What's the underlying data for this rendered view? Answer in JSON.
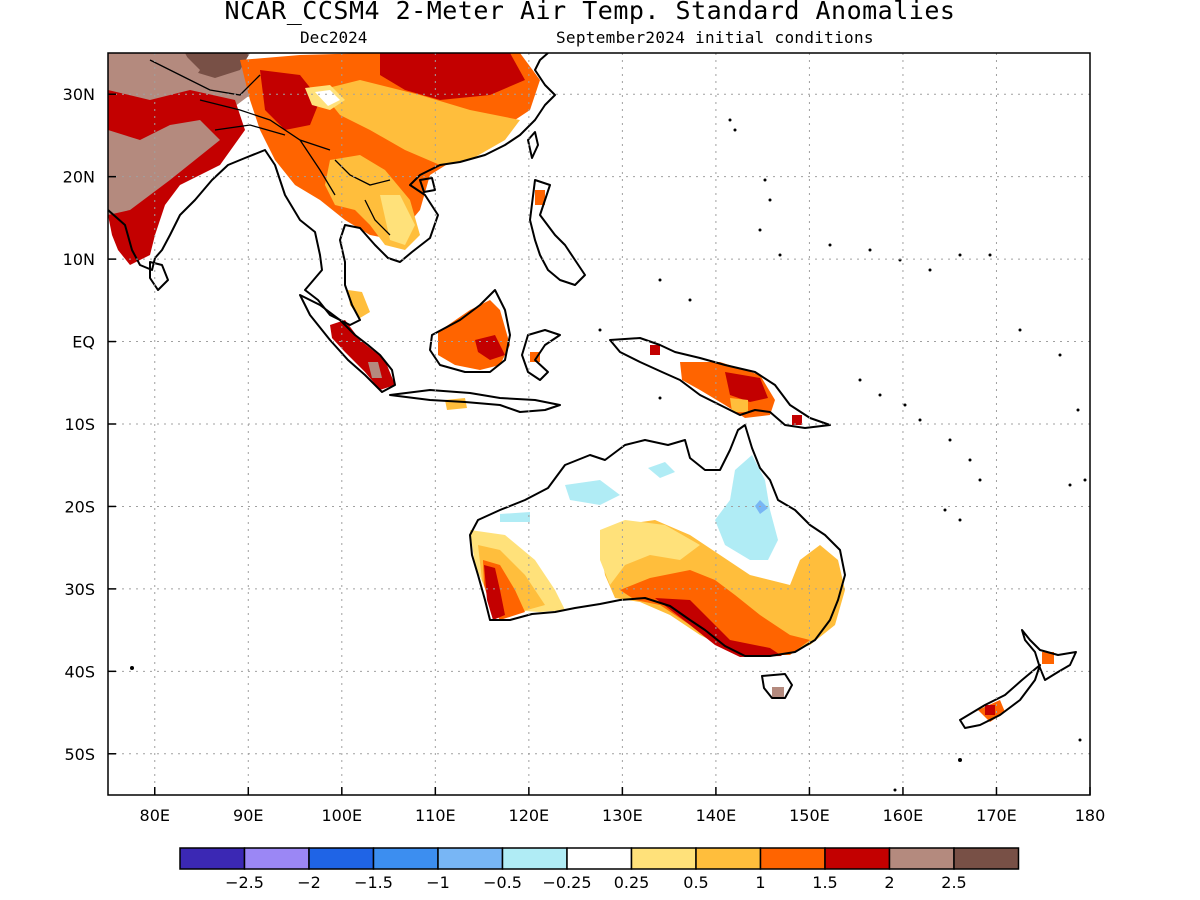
{
  "title": "NCAR_CCSM4 2-Meter Air Temp. Standard Anomalies",
  "subtitle_left": "Dec2024",
  "subtitle_right": "September2024 initial conditions",
  "map": {
    "lon_range": [
      75,
      180
    ],
    "lat_range": [
      -55,
      35
    ],
    "lon_ticks": [
      "80E",
      "90E",
      "100E",
      "110E",
      "120E",
      "130E",
      "140E",
      "150E",
      "160E",
      "170E",
      "180"
    ],
    "lat_ticks": [
      "30N",
      "20N",
      "10N",
      "EQ",
      "10S",
      "20S",
      "30S",
      "40S",
      "50S"
    ]
  },
  "colorbar": {
    "colors": [
      "#3b28b4",
      "#9b87f5",
      "#1f64e6",
      "#3c8ef0",
      "#78b6f5",
      "#b0ecf5",
      "#ffffff",
      "#ffe17a",
      "#ffbe3c",
      "#ff6400",
      "#c30000",
      "#b48a7e",
      "#785046"
    ],
    "labels": [
      "-2.5",
      "-2",
      "-1.5",
      "-1",
      "-0.5",
      "-0.25",
      "0.25",
      "0.5",
      "1",
      "1.5",
      "2",
      "2.5"
    ]
  },
  "regions": {
    "tibet_brown": {
      "name": "anomaly > 2.5",
      "color": "#785046"
    },
    "himalaya_tan": {
      "name": "anomaly 2 to 2.5",
      "color": "#b48a7e"
    },
    "china_red": {
      "name": "anomaly 1.5 to 2",
      "color": "#c30000"
    },
    "china_orange": {
      "name": "anomaly 1 to 1.5",
      "color": "#ff6400"
    },
    "china_gold": {
      "name": "anomaly 0.5 to 1",
      "color": "#ffbe3c"
    },
    "china_yellow": {
      "name": "anomaly 0.25 to 0.5",
      "color": "#ffe17a"
    },
    "aus_cyan": {
      "name": "anomaly -0.5 to -0.25",
      "color": "#b0ecf5"
    },
    "aus_blue": {
      "name": "anomaly -1 to -0.5",
      "color": "#78b6f5"
    }
  }
}
